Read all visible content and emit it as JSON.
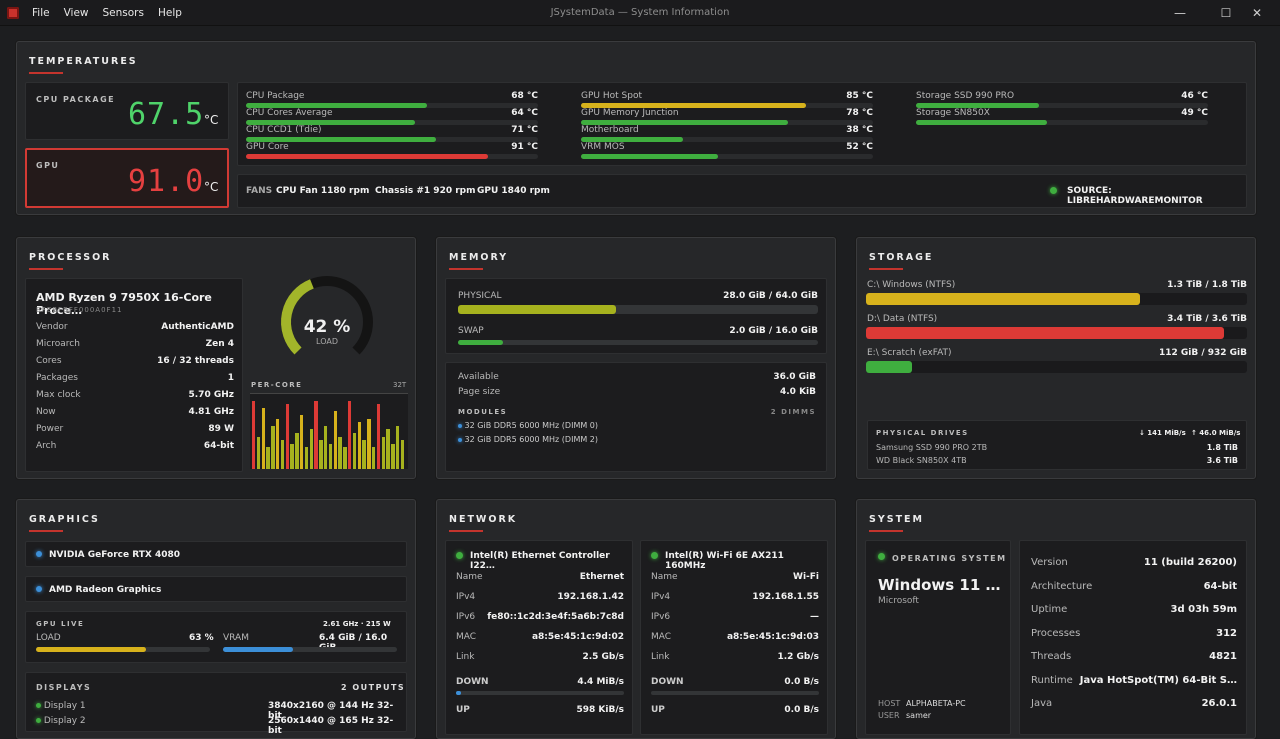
{
  "window": {
    "title": "JSystemData — System Information",
    "menu": [
      "File",
      "View",
      "Sensors",
      "Help"
    ],
    "min": "—",
    "max": "☐",
    "close": "✕"
  },
  "temps": {
    "title": "TEMPERATURES",
    "cpu_label": "CPU PACKAGE",
    "cpu_val": "67.5",
    "unit": "°C",
    "gpu_label": "GPU",
    "gpu_val": "91.0",
    "sensors": [
      {
        "name": "CPU Package",
        "val": "68 °C",
        "pct": 0.62,
        "color": "g"
      },
      {
        "name": "CPU Cores Average",
        "val": "64 °C",
        "pct": 0.58,
        "color": "g"
      },
      {
        "name": "CPU CCD1 (Tdie)",
        "val": "71 °C",
        "pct": 0.65,
        "color": "g"
      },
      {
        "name": "GPU Core",
        "val": "91 °C",
        "pct": 0.83,
        "color": "r"
      },
      {
        "name": "GPU Hot Spot",
        "val": "85 °C",
        "pct": 0.77,
        "color": "y"
      },
      {
        "name": "GPU Memory Junction",
        "val": "78 °C",
        "pct": 0.71,
        "color": "g"
      },
      {
        "name": "Motherboard",
        "val": "38 °C",
        "pct": 0.35,
        "color": "g"
      },
      {
        "name": "VRM MOS",
        "val": "52 °C",
        "pct": 0.47,
        "color": "g"
      },
      {
        "name": "Storage SSD 990 PRO",
        "val": "46 °C",
        "pct": 0.42,
        "color": "g"
      },
      {
        "name": "Storage SN850X",
        "val": "49 °C",
        "pct": 0.45,
        "color": "g"
      }
    ],
    "fans_label": "FANS",
    "fan1": "CPU Fan 1180 rpm",
    "fan2": "Chassis #1 920 rpm",
    "fan3": "GPU 1840 rpm",
    "source": "SOURCE: LIBREHARDWAREMONITOR"
  },
  "cpu": {
    "title": "PROCESSOR",
    "name": "AMD Ryzen 9 7950X 16-Core Proce…",
    "id": "BFEBFBFF000A0F11",
    "rows": [
      [
        "Vendor",
        "AuthenticAMD"
      ],
      [
        "Microarch",
        "Zen 4"
      ],
      [
        "Cores",
        "16 / 32 threads"
      ],
      [
        "Packages",
        "1"
      ],
      [
        "Max clock",
        "5.70 GHz"
      ],
      [
        "Now",
        "4.81 GHz"
      ],
      [
        "Power",
        "89 W"
      ],
      [
        "Arch",
        "64-bit"
      ]
    ],
    "load": "42 %",
    "load_pct": 0.42,
    "load_label": "LOAD",
    "percore_label": "PER-CORE",
    "threads": "32T",
    "cores": [
      0.95,
      0.45,
      0.85,
      0.3,
      0.6,
      0.7,
      0.4,
      0.9,
      0.35,
      0.5,
      0.75,
      0.3,
      0.55,
      0.95,
      0.4,
      0.6,
      0.35,
      0.8,
      0.45,
      0.3,
      0.95,
      0.5,
      0.65,
      0.4,
      0.7,
      0.3,
      0.9,
      0.45,
      0.55,
      0.35,
      0.6,
      0.4
    ]
  },
  "mem": {
    "title": "MEMORY",
    "phys_label": "PHYSICAL",
    "phys_val": "28.0 GiB / 64.0 GiB",
    "phys_pct": 0.44,
    "swap_label": "SWAP",
    "swap_val": "2.0 GiB / 16.0 GiB",
    "swap_pct": 0.125,
    "avail_label": "Available",
    "avail_val": "36.0 GiB",
    "page_label": "Page size",
    "page_val": "4.0 KiB",
    "modules_label": "MODULES",
    "dimms": "2 DIMMS",
    "mod1": "32 GiB DDR5 6000 MHz (DIMM 0)",
    "mod2": "32 GiB DDR5 6000 MHz (DIMM 2)"
  },
  "storage": {
    "title": "STORAGE",
    "vols": [
      {
        "name": "C:\\  Windows (NTFS)",
        "val": "1.3 TiB / 1.8 TiB",
        "pct": 0.72,
        "color": "y"
      },
      {
        "name": "D:\\  Data (NTFS)",
        "val": "3.4 TiB / 3.6 TiB",
        "pct": 0.94,
        "color": "r"
      },
      {
        "name": "E:\\  Scratch (exFAT)",
        "val": "112 GiB / 932 GiB",
        "pct": 0.12,
        "color": "g"
      }
    ],
    "drives_label": "PHYSICAL DRIVES",
    "read": "↓ 141 MiB/s",
    "write": "↑ 46.0 MiB/s",
    "d1": "Samsung SSD 990 PRO 2TB",
    "d1v": "1.8 TiB",
    "d2": "WD Black SN850X 4TB",
    "d2v": "3.6 TiB"
  },
  "gfx": {
    "title": "GRAPHICS",
    "gpu1": "NVIDIA GeForce RTX 4080",
    "gpu2": "AMD Radeon Graphics",
    "live_label": "GPU LIVE",
    "clock": "2.61 GHz  ·  215 W",
    "load_label": "LOAD",
    "load_val": "63 %",
    "load_pct": 0.63,
    "vram_label": "VRAM",
    "vram_val": "6.4 GiB / 16.0 GiB",
    "vram_pct": 0.4,
    "displays_label": "DISPLAYS",
    "outputs": "2 OUTPUTS",
    "disp1": "Display 1",
    "disp1v": "3840x2160 @ 144 Hz  32-bit",
    "disp2": "Display 2",
    "disp2v": "2560x1440 @ 165 Hz  32-bit"
  },
  "net": {
    "title": "NETWORK",
    "a": {
      "name": "Intel(R) Ethernet Controller I22…",
      "rows": [
        [
          "Name",
          "Ethernet"
        ],
        [
          "IPv4",
          "192.168.1.42"
        ],
        [
          "IPv6",
          "fe80::1c2d:3e4f:5a6b:7c8d"
        ],
        [
          "MAC",
          "a8:5e:45:1c:9d:02"
        ],
        [
          "Link",
          "2.5 Gb/s"
        ]
      ],
      "down": "4.4 MiB/s",
      "down_pct": 0.03,
      "up": "598 KiB/s"
    },
    "b": {
      "name": "Intel(R) Wi-Fi 6E AX211 160MHz",
      "rows": [
        [
          "Name",
          "Wi-Fi"
        ],
        [
          "IPv4",
          "192.168.1.55"
        ],
        [
          "IPv6",
          "—"
        ],
        [
          "MAC",
          "a8:5e:45:1c:9d:03"
        ],
        [
          "Link",
          "1.2 Gb/s"
        ]
      ],
      "down": "0.0 B/s",
      "up": "0.0 B/s"
    },
    "down_label": "DOWN",
    "up_label": "UP"
  },
  "sys": {
    "title": "SYSTEM",
    "os_label": "OPERATING SYSTEM",
    "os": "Windows 11 …",
    "vendor": "Microsoft",
    "host_label": "HOST",
    "host": "ALPHABETA-PC",
    "user_label": "USER",
    "user": "samer",
    "rows": [
      [
        "Version",
        "11 (build 26200)"
      ],
      [
        "Architecture",
        "64-bit"
      ],
      [
        "Uptime",
        "3d 03h 59m"
      ],
      [
        "Processes",
        "312"
      ],
      [
        "Threads",
        "4821"
      ],
      [
        "Runtime",
        "Java HotSpot(TM) 64-Bit S…"
      ],
      [
        "Java",
        "26.0.1"
      ]
    ]
  }
}
